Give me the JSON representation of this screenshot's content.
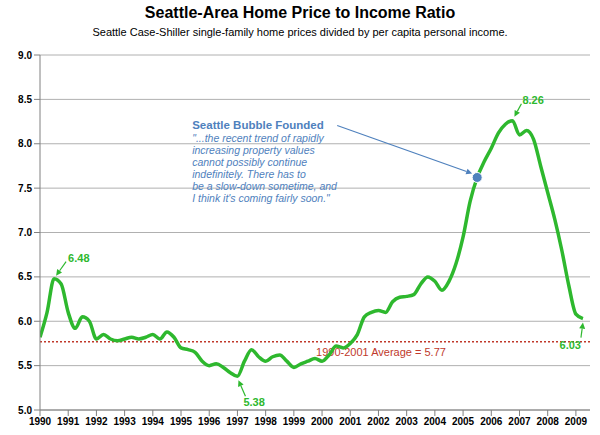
{
  "chart_data": {
    "type": "line",
    "title": "Seattle-Area Home Price to Income Ratio",
    "subtitle": "Seattle Case-Shiller single-family home prices divided by per capita personal income.",
    "x": [
      1990,
      1990.25,
      1990.5,
      1990.75,
      1991,
      1991.25,
      1991.5,
      1991.75,
      1992,
      1992.25,
      1992.5,
      1992.75,
      1993,
      1993.25,
      1993.5,
      1993.75,
      1994,
      1994.25,
      1994.5,
      1994.75,
      1995,
      1995.25,
      1995.5,
      1995.75,
      1996,
      1996.25,
      1996.5,
      1996.75,
      1997,
      1997.25,
      1997.5,
      1997.75,
      1998,
      1998.25,
      1998.5,
      1998.75,
      1999,
      1999.25,
      1999.5,
      1999.75,
      2000,
      2000.25,
      2000.5,
      2000.75,
      2001,
      2001.25,
      2001.5,
      2001.75,
      2002,
      2002.25,
      2002.5,
      2002.75,
      2003,
      2003.25,
      2003.5,
      2003.75,
      2004,
      2004.25,
      2004.5,
      2004.75,
      2005,
      2005.25,
      2005.5,
      2005.75,
      2006,
      2006.25,
      2006.5,
      2006.75,
      2007,
      2007.25,
      2007.5,
      2007.75,
      2008,
      2008.25,
      2008.5,
      2008.75,
      2009,
      2009.25
    ],
    "values": [
      5.82,
      6.1,
      6.48,
      6.42,
      6.1,
      5.92,
      6.05,
      6.0,
      5.8,
      5.85,
      5.8,
      5.78,
      5.8,
      5.82,
      5.8,
      5.82,
      5.85,
      5.8,
      5.88,
      5.82,
      5.7,
      5.68,
      5.65,
      5.55,
      5.5,
      5.52,
      5.48,
      5.42,
      5.38,
      5.55,
      5.68,
      5.6,
      5.55,
      5.6,
      5.62,
      5.55,
      5.48,
      5.52,
      5.55,
      5.58,
      5.55,
      5.62,
      5.72,
      5.7,
      5.75,
      5.85,
      6.05,
      6.1,
      6.12,
      6.1,
      6.22,
      6.27,
      6.28,
      6.3,
      6.42,
      6.5,
      6.45,
      6.35,
      6.45,
      6.65,
      6.95,
      7.35,
      7.62,
      7.8,
      7.95,
      8.12,
      8.22,
      8.26,
      8.1,
      8.15,
      8.05,
      7.75,
      7.45,
      7.15,
      6.8,
      6.4,
      6.08,
      6.03
    ],
    "color": "#2eb82e",
    "xlim": [
      1990,
      2009.5
    ],
    "xticks": [
      1990,
      1991,
      1992,
      1993,
      1994,
      1995,
      1996,
      1997,
      1998,
      1999,
      2000,
      2001,
      2002,
      2003,
      2004,
      2005,
      2006,
      2007,
      2008,
      2009
    ],
    "ylim": [
      5,
      9
    ],
    "yticks": [
      {
        "value": 5,
        "label": "5.0"
      },
      5.5,
      {
        "value": 6,
        "label": "6.0"
      },
      6.5,
      {
        "value": 7,
        "label": "7.0"
      },
      7.5,
      {
        "value": 8,
        "label": "8.0"
      },
      8.5,
      {
        "value": 9,
        "label": "9.0"
      }
    ],
    "grid": true,
    "reference_line": {
      "y": 5.77,
      "label": "1990-2001 Average = 5.77",
      "color": "#c0392b",
      "line_style": "dotted"
    },
    "annotations": [
      {
        "text": "6.48",
        "x": 1990.5,
        "y": 6.48
      },
      {
        "text": "5.38",
        "x": 1997,
        "y": 5.38
      },
      {
        "text": "8.26",
        "x": 2006.75,
        "y": 8.26
      },
      {
        "text": "6.03",
        "x": 2009.25,
        "y": 6.03
      }
    ],
    "callout": {
      "title": "Seattle Bubble Founded",
      "lines": [
        "\"...the recent trend of rapidly",
        "increasing property values",
        "cannot possibly continue",
        "indefinitely.  There has to",
        "be a slow-down sometime, and",
        "I think it's coming fairly soon.\""
      ],
      "x": 2005.5,
      "y": 7.62,
      "color": "#4f81bd"
    }
  }
}
